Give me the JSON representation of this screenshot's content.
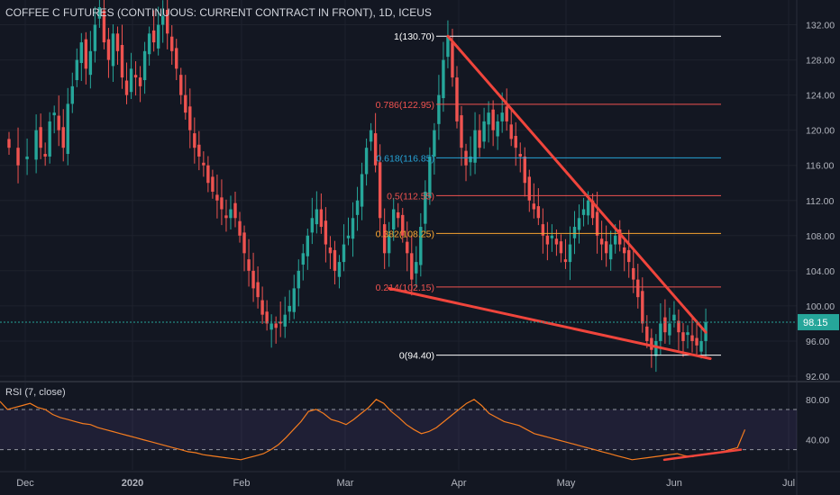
{
  "chart_data": {
    "type": "candlestick",
    "title": "COFFEE C FUTURES (CONTINUOUS: CURRENT CONTRACT IN FRONT), 1D, ICEUS",
    "price_axis": {
      "ticks": [
        "132.00",
        "128.00",
        "124.00",
        "120.00",
        "116.00",
        "112.00",
        "108.00",
        "104.00",
        "100.00",
        "96.00",
        "92.00"
      ],
      "ylim": [
        92,
        134
      ],
      "last_price_label": "98.15"
    },
    "time_axis": {
      "ticks": [
        "Dec",
        "2020",
        "Feb",
        "Mar",
        "Apr",
        "May",
        "Jun",
        "Jul"
      ]
    },
    "fibonacci": [
      {
        "label": "1(130.70)",
        "color": "#ffffff"
      },
      {
        "label": "0.786(122.95)",
        "color": "#f05350"
      },
      {
        "label": "0.618(116.85)",
        "color": "#26a3d6"
      },
      {
        "label": "0.5(112.55)",
        "color": "#f05350"
      },
      {
        "label": "0.382(108.25)",
        "color": "#f7a531"
      },
      {
        "label": "0.214(102.15)",
        "color": "#f05350"
      },
      {
        "label": "0(94.40)",
        "color": "#ffffff"
      }
    ],
    "fib_values": [
      130.7,
      122.95,
      116.85,
      112.55,
      108.25,
      102.15,
      94.4
    ],
    "close_path": [
      [
        -6,
        118
      ],
      [
        -4,
        116
      ],
      [
        -2,
        117
      ],
      [
        0,
        120
      ],
      [
        1,
        118
      ],
      [
        2,
        117
      ],
      [
        3,
        121
      ],
      [
        4,
        122
      ],
      [
        5,
        120
      ],
      [
        6,
        118
      ],
      [
        7,
        123
      ],
      [
        8,
        125
      ],
      [
        9,
        128
      ],
      [
        10,
        130
      ],
      [
        11,
        127
      ],
      [
        12,
        129
      ],
      [
        13,
        132
      ],
      [
        14,
        134
      ],
      [
        15,
        130
      ],
      [
        16,
        128
      ],
      [
        17,
        131
      ],
      [
        18,
        129
      ],
      [
        19,
        126
      ],
      [
        20,
        124
      ],
      [
        21,
        127
      ],
      [
        22,
        126
      ],
      [
        23,
        125
      ],
      [
        24,
        129
      ],
      [
        25,
        131
      ],
      [
        26,
        130
      ],
      [
        27,
        132
      ],
      [
        28,
        133
      ],
      [
        29,
        131
      ],
      [
        30,
        129
      ],
      [
        31,
        127
      ],
      [
        32,
        124
      ],
      [
        33,
        122
      ],
      [
        34,
        120
      ],
      [
        35,
        118
      ],
      [
        36,
        117
      ],
      [
        37,
        116
      ],
      [
        38,
        114
      ],
      [
        39,
        113
      ],
      [
        40,
        112
      ],
      [
        41,
        111
      ],
      [
        42,
        110
      ],
      [
        43,
        111
      ],
      [
        44,
        110
      ],
      [
        45,
        108
      ],
      [
        46,
        106
      ],
      [
        47,
        104
      ],
      [
        48,
        102
      ],
      [
        49,
        101
      ],
      [
        50,
        99
      ],
      [
        51,
        98
      ],
      [
        52,
        98
      ],
      [
        53,
        97.5
      ],
      [
        54,
        98
      ],
      [
        55,
        99
      ],
      [
        56,
        100
      ],
      [
        57,
        102
      ],
      [
        58,
        104
      ],
      [
        59,
        106
      ],
      [
        60,
        108
      ],
      [
        61,
        110
      ],
      [
        62,
        111
      ],
      [
        63,
        109
      ],
      [
        64,
        107
      ],
      [
        65,
        106
      ],
      [
        66,
        104
      ],
      [
        67,
        105
      ],
      [
        68,
        107
      ],
      [
        69,
        108
      ],
      [
        70,
        110
      ],
      [
        71,
        112
      ],
      [
        72,
        115
      ],
      [
        73,
        118
      ],
      [
        74,
        120
      ],
      [
        75,
        116
      ],
      [
        76,
        110
      ],
      [
        77,
        106
      ],
      [
        78,
        108
      ],
      [
        79,
        111
      ],
      [
        80,
        110
      ],
      [
        81,
        108
      ],
      [
        82,
        106
      ],
      [
        83,
        103
      ],
      [
        84,
        105
      ],
      [
        85,
        109
      ],
      [
        86,
        113
      ],
      [
        87,
        117
      ],
      [
        88,
        120
      ],
      [
        89,
        124
      ],
      [
        90,
        128
      ],
      [
        91,
        130.7
      ],
      [
        92,
        126
      ],
      [
        93,
        121
      ],
      [
        94,
        118
      ],
      [
        95,
        116
      ],
      [
        96,
        117
      ],
      [
        97,
        120
      ],
      [
        98,
        118
      ],
      [
        99,
        121
      ],
      [
        100,
        122
      ],
      [
        101,
        120
      ],
      [
        102,
        121
      ],
      [
        103,
        122
      ],
      [
        104,
        121
      ],
      [
        105,
        119
      ],
      [
        106,
        118
      ],
      [
        107,
        117
      ],
      [
        108,
        114
      ],
      [
        109,
        112
      ],
      [
        110,
        111
      ],
      [
        111,
        110
      ],
      [
        112,
        108
      ],
      [
        113,
        107
      ],
      [
        114,
        108
      ],
      [
        115,
        107
      ],
      [
        116,
        106
      ],
      [
        117,
        105
      ],
      [
        118,
        107
      ],
      [
        119,
        109
      ],
      [
        120,
        110
      ],
      [
        121,
        111
      ],
      [
        122,
        112
      ],
      [
        123,
        110
      ],
      [
        124,
        108
      ],
      [
        125,
        107
      ],
      [
        126,
        106
      ],
      [
        127,
        107
      ],
      [
        128,
        108
      ],
      [
        129,
        107
      ],
      [
        130,
        106
      ],
      [
        131,
        105
      ],
      [
        132,
        103
      ],
      [
        133,
        101
      ],
      [
        134,
        98
      ],
      [
        135,
        96
      ],
      [
        136,
        95
      ],
      [
        137,
        96
      ],
      [
        138,
        98
      ],
      [
        139,
        97
      ],
      [
        140,
        98
      ],
      [
        141,
        99
      ],
      [
        142,
        97
      ],
      [
        143,
        96
      ],
      [
        144,
        97
      ],
      [
        145,
        96
      ],
      [
        146,
        95.5
      ],
      [
        147,
        96
      ],
      [
        148,
        98.15
      ]
    ],
    "rsi": {
      "label": "RSI (7, close)",
      "ticks": [
        "80.00",
        "40.00"
      ],
      "ylim": [
        10,
        95
      ],
      "bands": [
        70,
        30
      ],
      "values": [
        78,
        70,
        72,
        74,
        76,
        72,
        70,
        65,
        62,
        60,
        58,
        56,
        55,
        52,
        50,
        48,
        46,
        44,
        42,
        40,
        38,
        36,
        34,
        32,
        30,
        28,
        27,
        25,
        24,
        23,
        22,
        21,
        20,
        22,
        24,
        26,
        30,
        35,
        42,
        50,
        58,
        68,
        70,
        66,
        60,
        58,
        55,
        60,
        66,
        72,
        80,
        76,
        68,
        62,
        55,
        50,
        46,
        48,
        52,
        58,
        64,
        70,
        76,
        80,
        74,
        66,
        62,
        58,
        56,
        54,
        50,
        46,
        44,
        42,
        40,
        38,
        36,
        34,
        32,
        30,
        28,
        26,
        24,
        22,
        20,
        21,
        22,
        23,
        24,
        25,
        26,
        24,
        23,
        25,
        26,
        27,
        28,
        30,
        32,
        50
      ]
    },
    "trendlines": [
      {
        "name": "upper-trendline",
        "from": [
          91,
          130.7
        ],
        "to": [
          148,
          97
        ]
      },
      {
        "name": "lower-trendline",
        "from": [
          78,
          102
        ],
        "to": [
          149,
          94.0
        ]
      }
    ]
  }
}
